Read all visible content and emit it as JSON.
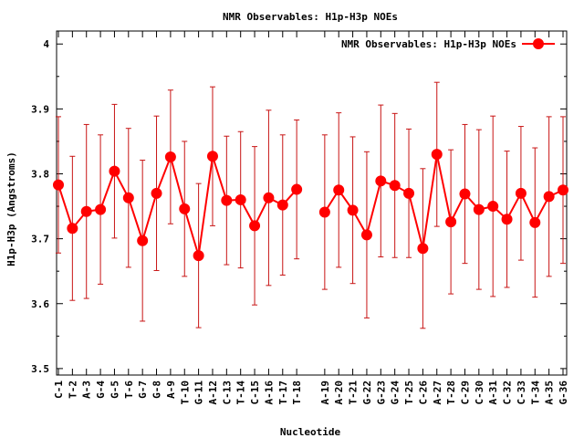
{
  "chart_data": {
    "type": "line",
    "title": "NMR Observables: H1p-H3p NOEs",
    "xlabel": "Nucleotide",
    "ylabel": "H1p-H3p (Angstroms)",
    "ylim": [
      3.49,
      4.02
    ],
    "yticks": [
      "3.5",
      "3.6",
      "3.7",
      "3.8",
      "3.9",
      "4"
    ],
    "grid": false,
    "legend": {
      "label": "NMR Observables: H1p-H3p NOEs",
      "placement": "top-right"
    },
    "series_color": "#ff0000",
    "error_color": "#c81414",
    "gap_after": "T-18",
    "categories": [
      "C-1",
      "T-2",
      "A-3",
      "G-4",
      "G-5",
      "T-6",
      "G-7",
      "G-8",
      "A-9",
      "T-10",
      "G-11",
      "A-12",
      "C-13",
      "T-14",
      "C-15",
      "A-16",
      "T-17",
      "T-18",
      "A-19",
      "A-20",
      "T-21",
      "G-22",
      "G-23",
      "G-24",
      "T-25",
      "C-26",
      "A-27",
      "T-28",
      "C-29",
      "C-30",
      "A-31",
      "C-32",
      "C-33",
      "T-34",
      "A-35",
      "G-36"
    ],
    "values": [
      3.783,
      3.716,
      3.742,
      3.745,
      3.804,
      3.763,
      3.697,
      3.77,
      3.826,
      3.746,
      3.674,
      3.827,
      3.759,
      3.76,
      3.72,
      3.763,
      3.752,
      3.776,
      3.741,
      3.775,
      3.744,
      3.706,
      3.789,
      3.782,
      3.77,
      3.685,
      3.83,
      3.726,
      3.769,
      3.745,
      3.75,
      3.73,
      3.77,
      3.725,
      3.765,
      3.775
    ],
    "errors": [
      0.105,
      0.111,
      0.134,
      0.115,
      0.103,
      0.107,
      0.124,
      0.119,
      0.103,
      0.104,
      0.111,
      0.107,
      0.099,
      0.105,
      0.122,
      0.135,
      0.108,
      0.107,
      0.119,
      0.119,
      0.113,
      0.128,
      0.117,
      0.111,
      0.099,
      0.123,
      0.111,
      0.111,
      0.107,
      0.123,
      0.139,
      0.105,
      0.103,
      0.115,
      0.123,
      0.113
    ]
  }
}
